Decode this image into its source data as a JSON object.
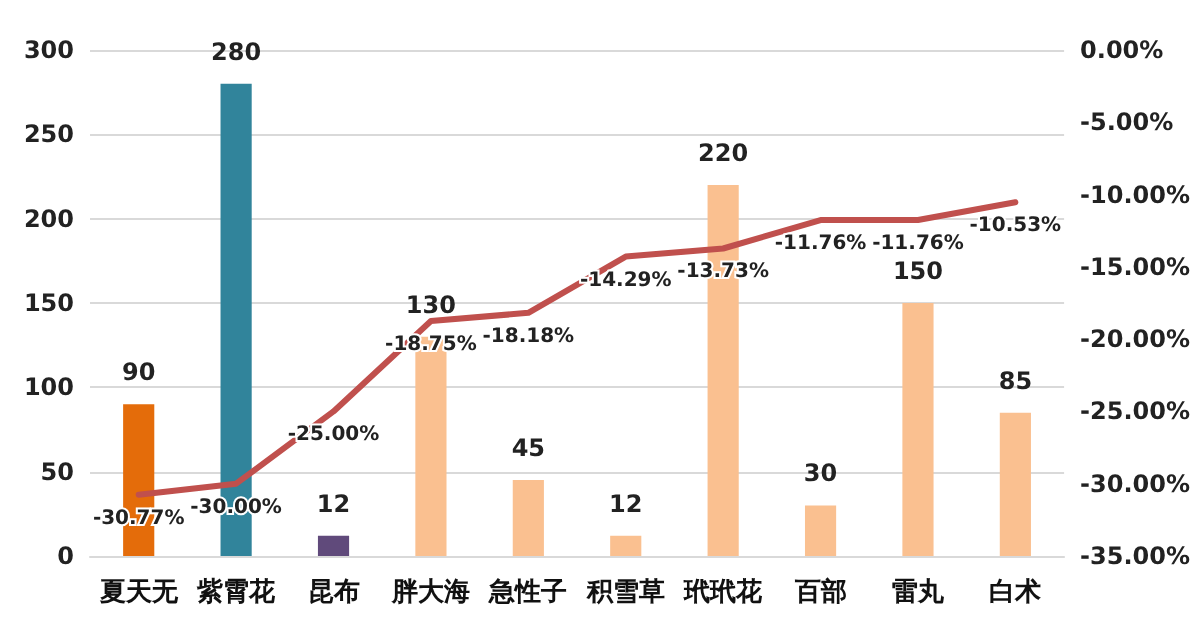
{
  "chart_data": {
    "type": "bar",
    "categories": [
      "夏天无",
      "紫霄花",
      "昆布",
      "胖大海",
      "急性子",
      "积雪草",
      "玳玳花",
      "百部",
      "雷丸",
      "白术"
    ],
    "series": [
      {
        "values": [
          90,
          280,
          12,
          130,
          45,
          12,
          220,
          30,
          150,
          85
        ],
        "colors": [
          "#e46c0a",
          "#31849b",
          "#604a7b",
          "#fac090",
          "#fac090",
          "#fac090",
          "#fac090",
          "#fac090",
          "#fac090",
          "#fac090"
        ],
        "data_labels": true
      },
      {
        "type": "line",
        "axis": "y2",
        "color": "#c0504d",
        "values": [
          -30.77,
          -30.0,
          -25.0,
          -18.75,
          -18.18,
          -14.29,
          -13.73,
          -11.76,
          -11.76,
          -10.53
        ],
        "value_labels": [
          "-30.77%",
          "-30.00%",
          "-25.00%",
          "-18.75%",
          "-18.18%",
          "-14.29%",
          "-13.73%",
          "-11.76%",
          "-11.76%",
          "-10.53%"
        ]
      }
    ],
    "ylim": [
      0,
      300
    ],
    "yticks": [
      0,
      50,
      100,
      150,
      200,
      250,
      300
    ],
    "y2lim": [
      -35,
      0
    ],
    "y2ticks": [
      {
        "value": 0,
        "label": "0.00%"
      },
      {
        "value": -5,
        "label": "-5.00%"
      },
      {
        "value": -10,
        "label": "-10.00%"
      },
      {
        "value": -15,
        "label": "-15.00%"
      },
      {
        "value": -20,
        "label": "-20.00%"
      },
      {
        "value": -25,
        "label": "-25.00%"
      },
      {
        "value": -30,
        "label": "-30.00%"
      },
      {
        "value": -35,
        "label": "-35.00%"
      }
    ],
    "grid": "y",
    "marker": "none",
    "line_style": "solid"
  }
}
